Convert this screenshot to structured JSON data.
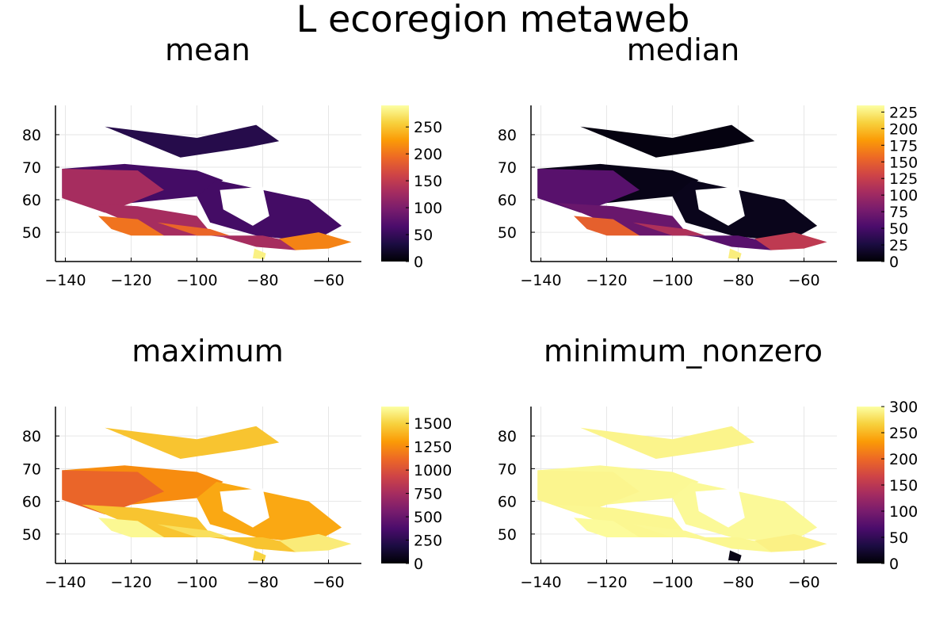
{
  "figure": {
    "title": "L ecoregion metaweb"
  },
  "colormap": {
    "name": "inferno",
    "stops": [
      "#000004",
      "#1b0c41",
      "#4a0c6b",
      "#781c6d",
      "#a52c60",
      "#cf4446",
      "#ed6925",
      "#fb9b06",
      "#f7d13d",
      "#fcffa4"
    ]
  },
  "chart_data": [
    {
      "type": "heatmap",
      "title": "mean",
      "xlim": [
        -143,
        -50
      ],
      "ylim": [
        41,
        89
      ],
      "xticks": [
        -140,
        -120,
        -100,
        -80,
        -60
      ],
      "xtick_labels": [
        "−140",
        "−120",
        "−100",
        "−80",
        "−60"
      ],
      "yticks": [
        50,
        60,
        70,
        80
      ],
      "ytick_labels": [
        "50",
        "60",
        "70",
        "80"
      ],
      "grid": true,
      "colorbar": {
        "range": [
          0,
          290
        ],
        "ticks": [
          0,
          50,
          100,
          150,
          200,
          250
        ],
        "tick_labels": [
          "0",
          "50",
          "100",
          "150",
          "200",
          "250"
        ]
      },
      "regions": [
        {
          "lon": [
            -128,
            -100,
            -82,
            -75,
            -85,
            -105
          ],
          "lat": [
            82.5,
            79,
            83,
            78,
            76,
            73
          ],
          "value": 40
        },
        {
          "lon": [
            -141,
            -122,
            -100,
            -92,
            -100,
            -120,
            -141
          ],
          "lat": [
            69.5,
            71,
            69,
            66,
            61,
            59,
            61
          ],
          "value": 60
        },
        {
          "lon": [
            -141,
            -118,
            -110,
            -120,
            -128,
            -141
          ],
          "lat": [
            69.5,
            69,
            63,
            59,
            56,
            60.5
          ],
          "value": 130
        },
        {
          "lon": [
            -100,
            -94,
            -80,
            -66,
            -56,
            -65,
            -82,
            -96
          ],
          "lat": [
            61,
            66,
            63,
            60,
            52,
            47,
            49,
            53
          ],
          "value": 60
        },
        {
          "lon": [
            -135,
            -118,
            -100,
            -95,
            -110,
            -123
          ],
          "lat": [
            59,
            58,
            55,
            49,
            49,
            54
          ],
          "value": 130
        },
        {
          "lon": [
            -130,
            -118,
            -110,
            -120,
            -126
          ],
          "lat": [
            55,
            54,
            49,
            49,
            51
          ],
          "value": 200
        },
        {
          "lon": [
            -112,
            -96,
            -90,
            -100
          ],
          "lat": [
            53,
            51,
            49,
            49
          ],
          "value": 190
        },
        {
          "lon": [
            -96,
            -80,
            -66,
            -60,
            -70,
            -82,
            -92
          ],
          "lat": [
            49,
            49,
            46,
            46.5,
            44.5,
            45.5,
            48.5
          ],
          "value": 130
        },
        {
          "lon": [
            -75,
            -63,
            -53,
            -60,
            -70
          ],
          "lat": [
            48,
            50,
            47,
            45,
            44.5
          ],
          "value": 210
        },
        {
          "lon": [
            -82.5,
            -79,
            -79.5,
            -83
          ],
          "lat": [
            45,
            43.5,
            41.7,
            42
          ],
          "value": 280
        }
      ],
      "lakes": [
        {
          "lon": [
            -93,
            -80,
            -78,
            -83,
            -92
          ],
          "lat": [
            63,
            64,
            55,
            52,
            57
          ],
          "value": null
        }
      ]
    },
    {
      "type": "heatmap",
      "title": "median",
      "xlim": [
        -143,
        -50
      ],
      "ylim": [
        41,
        89
      ],
      "xticks": [
        -140,
        -120,
        -100,
        -80,
        -60
      ],
      "xtick_labels": [
        "−140",
        "−120",
        "−100",
        "−80",
        "−60"
      ],
      "yticks": [
        50,
        60,
        70,
        80
      ],
      "ytick_labels": [
        "50",
        "60",
        "70",
        "80"
      ],
      "grid": true,
      "colorbar": {
        "range": [
          0,
          235
        ],
        "ticks": [
          0,
          25,
          50,
          75,
          100,
          125,
          150,
          175,
          200,
          225
        ],
        "tick_labels": [
          "0",
          "25",
          "50",
          "75",
          "100",
          "125",
          "150",
          "175",
          "200",
          "225"
        ]
      },
      "regions": [
        {
          "lon": [
            -128,
            -100,
            -82,
            -75,
            -85,
            -105
          ],
          "lat": [
            82.5,
            79,
            83,
            78,
            76,
            73
          ],
          "value": 5
        },
        {
          "lon": [
            -141,
            -122,
            -100,
            -92,
            -100,
            -120,
            -141
          ],
          "lat": [
            69.5,
            71,
            69,
            66,
            61,
            59,
            61
          ],
          "value": 8
        },
        {
          "lon": [
            -141,
            -118,
            -110,
            -120,
            -128,
            -141
          ],
          "lat": [
            69.5,
            69,
            63,
            59,
            56,
            60.5
          ],
          "value": 60
        },
        {
          "lon": [
            -100,
            -94,
            -80,
            -66,
            -56,
            -65,
            -82,
            -96
          ],
          "lat": [
            61,
            66,
            63,
            60,
            52,
            47,
            49,
            53
          ],
          "value": 10
        },
        {
          "lon": [
            -135,
            -118,
            -100,
            -95,
            -110,
            -123
          ],
          "lat": [
            59,
            58,
            55,
            49,
            49,
            54
          ],
          "value": 70
        },
        {
          "lon": [
            -130,
            -118,
            -110,
            -120,
            -126
          ],
          "lat": [
            55,
            54,
            49,
            49,
            51
          ],
          "value": 150
        },
        {
          "lon": [
            -112,
            -96,
            -90,
            -100
          ],
          "lat": [
            53,
            51,
            49,
            49
          ],
          "value": 110
        },
        {
          "lon": [
            -96,
            -80,
            -66,
            -60,
            -70,
            -82,
            -92
          ],
          "lat": [
            49,
            49,
            46,
            46.5,
            44.5,
            45.5,
            48.5
          ],
          "value": 60
        },
        {
          "lon": [
            -75,
            -63,
            -53,
            -60,
            -70
          ],
          "lat": [
            48,
            50,
            47,
            45,
            44.5
          ],
          "value": 120
        },
        {
          "lon": [
            -82.5,
            -79,
            -79.5,
            -83
          ],
          "lat": [
            45,
            43.5,
            41.7,
            42
          ],
          "value": 225
        }
      ],
      "lakes": [
        {
          "lon": [
            -93,
            -80,
            -78,
            -83,
            -92
          ],
          "lat": [
            63,
            64,
            55,
            52,
            57
          ],
          "value": null
        }
      ]
    },
    {
      "type": "heatmap",
      "title": "maximum",
      "xlim": [
        -143,
        -50
      ],
      "ylim": [
        41,
        89
      ],
      "xticks": [
        -140,
        -120,
        -100,
        -80,
        -60
      ],
      "xtick_labels": [
        "−140",
        "−120",
        "−100",
        "−80",
        "−60"
      ],
      "yticks": [
        50,
        60,
        70,
        80
      ],
      "ytick_labels": [
        "50",
        "60",
        "70",
        "80"
      ],
      "grid": true,
      "colorbar": {
        "range": [
          0,
          1680
        ],
        "ticks": [
          0,
          250,
          500,
          750,
          1000,
          1250,
          1500
        ],
        "tick_labels": [
          "0",
          "250",
          "500",
          "750",
          "1000",
          "1250",
          "1500"
        ]
      },
      "regions": [
        {
          "lon": [
            -128,
            -100,
            -82,
            -75,
            -85,
            -105
          ],
          "lat": [
            82.5,
            79,
            83,
            78,
            76,
            73
          ],
          "value": 1450
        },
        {
          "lon": [
            -141,
            -122,
            -100,
            -92,
            -100,
            -120,
            -141
          ],
          "lat": [
            69.5,
            71,
            69,
            66,
            61,
            59,
            61
          ],
          "value": 1250
        },
        {
          "lon": [
            -141,
            -118,
            -110,
            -120,
            -128,
            -141
          ],
          "lat": [
            69.5,
            69,
            63,
            59,
            56,
            60.5
          ],
          "value": 1100
        },
        {
          "lon": [
            -100,
            -94,
            -80,
            -66,
            -56,
            -65,
            -82,
            -96
          ],
          "lat": [
            61,
            66,
            63,
            60,
            52,
            47,
            49,
            53
          ],
          "value": 1350
        },
        {
          "lon": [
            -135,
            -118,
            -100,
            -95,
            -110,
            -123
          ],
          "lat": [
            59,
            58,
            55,
            49,
            49,
            54
          ],
          "value": 1450
        },
        {
          "lon": [
            -130,
            -118,
            -110,
            -120,
            -126
          ],
          "lat": [
            55,
            54,
            49,
            49,
            51
          ],
          "value": 1650
        },
        {
          "lon": [
            -112,
            -96,
            -90,
            -100
          ],
          "lat": [
            53,
            51,
            49,
            49
          ],
          "value": 1550
        },
        {
          "lon": [
            -96,
            -80,
            -66,
            -60,
            -70,
            -82,
            -92
          ],
          "lat": [
            49,
            49,
            46,
            46.5,
            44.5,
            45.5,
            48.5
          ],
          "value": 1450
        },
        {
          "lon": [
            -75,
            -63,
            -53,
            -60,
            -70
          ],
          "lat": [
            48,
            50,
            47,
            45,
            44.5
          ],
          "value": 1600
        },
        {
          "lon": [
            -82.5,
            -79,
            -79.5,
            -83
          ],
          "lat": [
            45,
            43.5,
            41.7,
            42
          ],
          "value": 1500
        }
      ],
      "lakes": [
        {
          "lon": [
            -93,
            -80,
            -78,
            -83,
            -92
          ],
          "lat": [
            63,
            64,
            55,
            52,
            57
          ],
          "value": null
        }
      ]
    },
    {
      "type": "heatmap",
      "title": "minimum_nonzero",
      "xlim": [
        -143,
        -50
      ],
      "ylim": [
        41,
        89
      ],
      "xticks": [
        -140,
        -120,
        -100,
        -80,
        -60
      ],
      "xtick_labels": [
        "−140",
        "−120",
        "−100",
        "−80",
        "−60"
      ],
      "yticks": [
        50,
        60,
        70,
        80
      ],
      "ytick_labels": [
        "50",
        "60",
        "70",
        "80"
      ],
      "grid": true,
      "colorbar": {
        "range": [
          0,
          300
        ],
        "ticks": [
          0,
          50,
          100,
          150,
          200,
          250,
          300
        ],
        "tick_labels": [
          "0",
          "50",
          "100",
          "150",
          "200",
          "250",
          "300"
        ]
      },
      "regions": [
        {
          "lon": [
            -128,
            -100,
            -82,
            -75,
            -85,
            -105
          ],
          "lat": [
            82.5,
            79,
            83,
            78,
            76,
            73
          ],
          "value": 292
        },
        {
          "lon": [
            -141,
            -122,
            -100,
            -92,
            -100,
            -120,
            -141
          ],
          "lat": [
            69.5,
            71,
            69,
            66,
            61,
            59,
            61
          ],
          "value": 295
        },
        {
          "lon": [
            -141,
            -118,
            -110,
            -120,
            -128,
            -141
          ],
          "lat": [
            69.5,
            69,
            63,
            59,
            56,
            60.5
          ],
          "value": 293
        },
        {
          "lon": [
            -100,
            -94,
            -80,
            -66,
            -56,
            -65,
            -82,
            -96
          ],
          "lat": [
            61,
            66,
            63,
            60,
            52,
            47,
            49,
            53
          ],
          "value": 296
        },
        {
          "lon": [
            -135,
            -118,
            -100,
            -95,
            -110,
            -123
          ],
          "lat": [
            59,
            58,
            55,
            49,
            49,
            54
          ],
          "value": 294
        },
        {
          "lon": [
            -130,
            -118,
            -110,
            -120,
            -126
          ],
          "lat": [
            55,
            54,
            49,
            49,
            51
          ],
          "value": 297
        },
        {
          "lon": [
            -112,
            -96,
            -90,
            -100
          ],
          "lat": [
            53,
            51,
            49,
            49
          ],
          "value": 295
        },
        {
          "lon": [
            -96,
            -80,
            -66,
            -60,
            -70,
            -82,
            -92
          ],
          "lat": [
            49,
            49,
            46,
            46.5,
            44.5,
            45.5,
            48.5
          ],
          "value": 294
        },
        {
          "lon": [
            -75,
            -63,
            -53,
            -60,
            -70
          ],
          "lat": [
            48,
            50,
            47,
            45,
            44.5
          ],
          "value": 290
        },
        {
          "lon": [
            -82.5,
            -79,
            -79.5,
            -83
          ],
          "lat": [
            45,
            43.5,
            41.7,
            42
          ],
          "value": 10
        }
      ],
      "lakes": [
        {
          "lon": [
            -93,
            -80,
            -78,
            -83,
            -92
          ],
          "lat": [
            63,
            64,
            55,
            52,
            57
          ],
          "value": null
        }
      ]
    }
  ]
}
